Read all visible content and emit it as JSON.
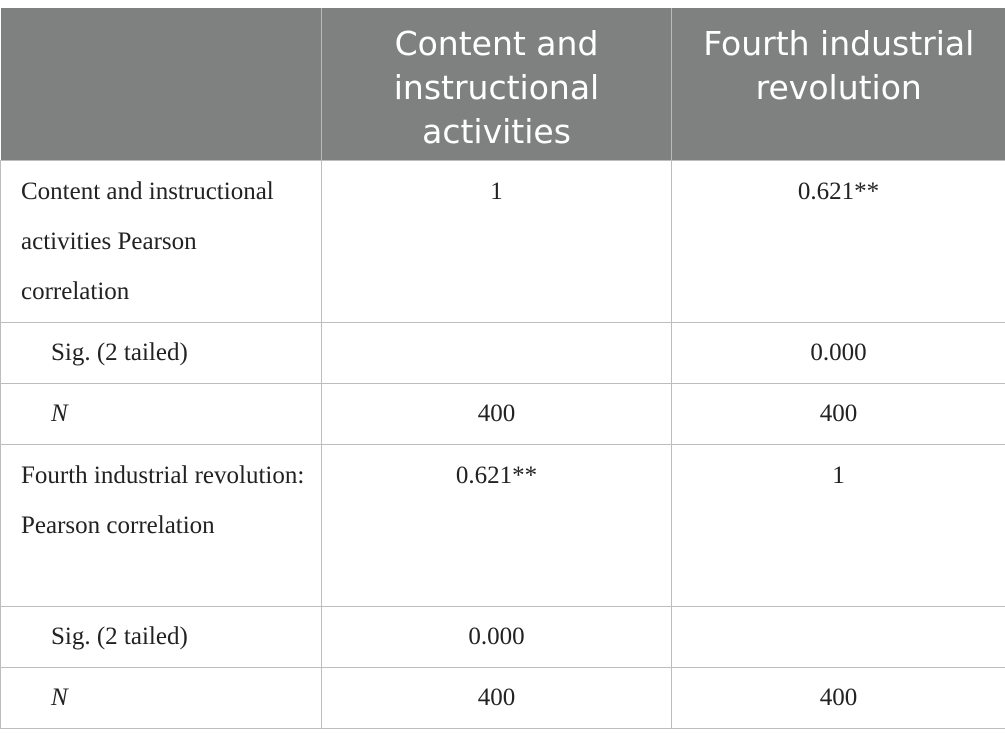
{
  "table": {
    "headers": [
      "",
      "Content and instructional activities",
      "Fourth industrial revolution"
    ],
    "rows": [
      {
        "label": "Content and instructional activities Pearson correlation",
        "col1": "1",
        "col2": "0.621**"
      },
      {
        "label": "Sig. (2 tailed)",
        "col1": "",
        "col2": "0.000"
      },
      {
        "label": "N",
        "col1": "400",
        "col2": "400"
      },
      {
        "label": "Fourth industrial revolution: Pearson correlation",
        "col1": "0.621**",
        "col2": "1"
      },
      {
        "label": "Sig. (2 tailed)",
        "col1": "0.000",
        "col2": ""
      },
      {
        "label": "N",
        "col1": "400",
        "col2": "400"
      }
    ]
  },
  "colors": {
    "header_bg": "#7e8180",
    "header_text": "#ffffff",
    "border": "#bdbdbd"
  }
}
